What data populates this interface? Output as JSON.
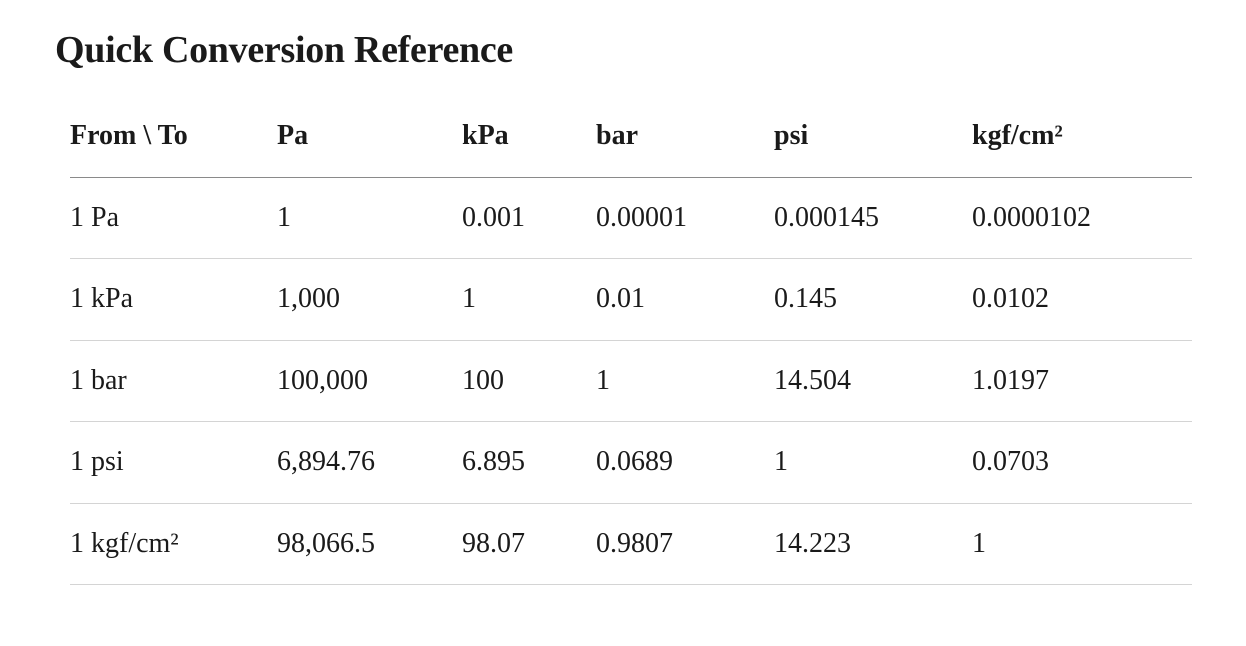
{
  "title": "Quick Conversion Reference",
  "table": {
    "header": [
      "From \\ To",
      "Pa",
      "kPa",
      "bar",
      "psi",
      "kgf/cm²"
    ],
    "rows": [
      [
        "1 Pa",
        "1",
        "0.001",
        "0.00001",
        "0.000145",
        "0.0000102"
      ],
      [
        "1 kPa",
        "1,000",
        "1",
        "0.01",
        "0.145",
        "0.0102"
      ],
      [
        "1 bar",
        "100,000",
        "100",
        "1",
        "14.504",
        "1.0197"
      ],
      [
        "1 psi",
        "6,894.76",
        "6.895",
        "0.0689",
        "1",
        "0.0703"
      ],
      [
        "1 kgf/cm²",
        "98,066.5",
        "98.07",
        "0.9807",
        "14.223",
        "1"
      ]
    ]
  }
}
